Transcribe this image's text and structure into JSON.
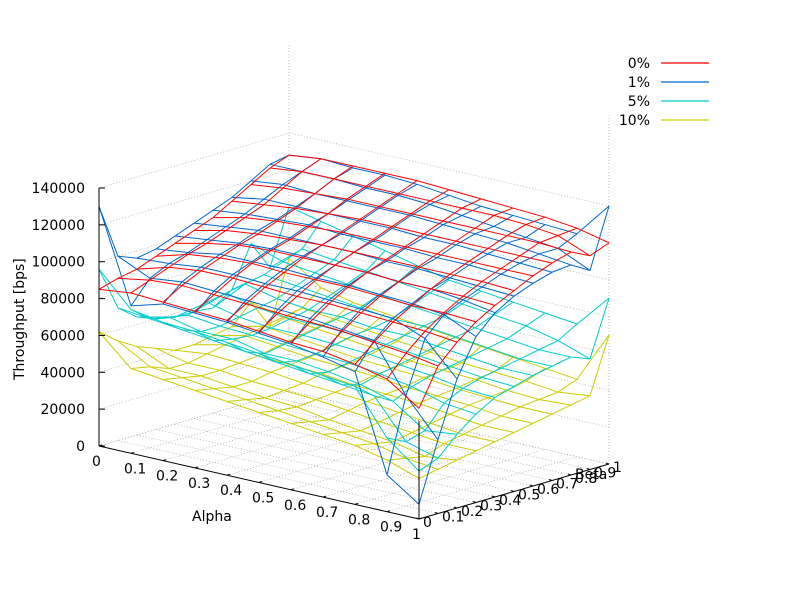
{
  "chart_data": {
    "type": "surface",
    "title": "",
    "xlabel": "Alpha",
    "ylabel": "Beta",
    "zlabel": "Throughput [bps]",
    "x_ticks": [
      "0",
      "0.1",
      "0.2",
      "0.3",
      "0.4",
      "0.5",
      "0.6",
      "0.7",
      "0.8",
      "0.9",
      "1"
    ],
    "y_ticks": [
      "0",
      "0.1",
      "0.2",
      "0.3",
      "0.4",
      "0.5",
      "0.6",
      "0.7",
      "0.8",
      "0.9",
      "1"
    ],
    "z_ticks": [
      "0",
      "20000",
      "40000",
      "60000",
      "80000",
      "100000",
      "120000",
      "140000"
    ],
    "x": [
      0,
      0.1,
      0.2,
      0.3,
      0.4,
      0.5,
      0.6,
      0.7,
      0.8,
      0.9,
      1
    ],
    "y": [
      0,
      0.1,
      0.2,
      0.3,
      0.4,
      0.5,
      0.6,
      0.7,
      0.8,
      0.9,
      1
    ],
    "zlim": [
      0,
      140000
    ],
    "grid": true,
    "legend_position": "top-right",
    "series": [
      {
        "name": "0%",
        "color": "#ff0000",
        "z": [
          [
            85000,
            88000,
            90000,
            94000,
            98000,
            102000,
            106000,
            112000,
            118000,
            124000,
            128000
          ],
          [
            87000,
            91000,
            95000,
            99000,
            102000,
            106000,
            110000,
            114000,
            120000,
            126000,
            130000
          ],
          [
            86000,
            92000,
            97000,
            101000,
            105000,
            108000,
            112000,
            116000,
            121000,
            126000,
            130000
          ],
          [
            85000,
            91000,
            97000,
            102000,
            106000,
            109000,
            113000,
            117000,
            122000,
            126000,
            130000
          ],
          [
            84000,
            90000,
            96000,
            101000,
            106000,
            110000,
            114000,
            118000,
            122000,
            126000,
            130000
          ],
          [
            82000,
            89000,
            95000,
            101000,
            106000,
            110000,
            114000,
            118000,
            122000,
            126000,
            129000
          ],
          [
            80000,
            88000,
            95000,
            101000,
            106000,
            110000,
            114000,
            118000,
            122000,
            126000,
            128000
          ],
          [
            79000,
            87000,
            94000,
            100000,
            105000,
            110000,
            114000,
            118000,
            122000,
            126000,
            127000
          ],
          [
            76000,
            85000,
            93000,
            99000,
            105000,
            110000,
            114000,
            118000,
            122000,
            125000,
            126000
          ],
          [
            72000,
            83000,
            92000,
            99000,
            105000,
            110000,
            114000,
            118000,
            122000,
            123000,
            124000
          ],
          [
            60000,
            80000,
            90000,
            98000,
            104000,
            109000,
            114000,
            118000,
            121000,
            116000,
            120000
          ]
        ]
      },
      {
        "name": "1%",
        "color": "#0066cc",
        "z": [
          [
            130000,
            100000,
            96000,
            98000,
            102000,
            106000,
            110000,
            114000,
            120000,
            126000,
            128000
          ],
          [
            80000,
            92000,
            97000,
            100000,
            104000,
            108000,
            112000,
            117000,
            122000,
            126000,
            130000
          ],
          [
            85000,
            94000,
            99000,
            103000,
            106000,
            110000,
            113000,
            117000,
            121000,
            126000,
            129000
          ],
          [
            84000,
            93000,
            99000,
            103000,
            107000,
            110000,
            114000,
            117000,
            121000,
            125000,
            129000
          ],
          [
            83000,
            92000,
            98000,
            103000,
            107000,
            110000,
            113000,
            117000,
            121000,
            125000,
            128000
          ],
          [
            81000,
            91000,
            98000,
            102000,
            106000,
            110000,
            113000,
            117000,
            121000,
            124000,
            126000
          ],
          [
            79000,
            90000,
            97000,
            102000,
            106000,
            109000,
            113000,
            116000,
            120000,
            122000,
            124000
          ],
          [
            76000,
            88000,
            96000,
            101000,
            105000,
            109000,
            112000,
            116000,
            119000,
            120000,
            123000
          ],
          [
            72000,
            86000,
            95000,
            100000,
            105000,
            108000,
            112000,
            115000,
            118000,
            118000,
            122000
          ],
          [
            20000,
            60000,
            88000,
            98000,
            103000,
            107000,
            111000,
            114000,
            116000,
            116000,
            121000
          ],
          [
            8000,
            40000,
            70000,
            90000,
            100000,
            106000,
            110000,
            113000,
            114000,
            108000,
            140000
          ]
        ]
      },
      {
        "name": "5%",
        "color": "#00cccc",
        "z": [
          [
            96000,
            72000,
            64000,
            60000,
            58000,
            58000,
            57000,
            64000,
            86000,
            70000,
            100000
          ],
          [
            78000,
            70000,
            68000,
            66000,
            70000,
            72000,
            74000,
            76000,
            80000,
            84000,
            96000
          ],
          [
            75000,
            68000,
            64000,
            64000,
            66000,
            68000,
            70000,
            74000,
            78000,
            82000,
            92000
          ],
          [
            74000,
            66000,
            64000,
            63000,
            64000,
            66000,
            68000,
            72000,
            76000,
            80000,
            88000
          ],
          [
            72000,
            64000,
            60000,
            62000,
            64000,
            66000,
            68000,
            70000,
            74000,
            78000,
            84000
          ],
          [
            70000,
            62000,
            60000,
            61000,
            63000,
            65000,
            66000,
            68000,
            72000,
            76000,
            80000
          ],
          [
            68000,
            60000,
            58000,
            60000,
            62000,
            64000,
            66000,
            68000,
            70000,
            74000,
            78000
          ],
          [
            66000,
            58000,
            55000,
            58000,
            60000,
            62000,
            64000,
            66000,
            68000,
            72000,
            76000
          ],
          [
            64000,
            56000,
            50000,
            55000,
            58000,
            60000,
            62000,
            64000,
            66000,
            70000,
            74000
          ],
          [
            40000,
            35000,
            38000,
            50000,
            55000,
            58000,
            60000,
            62000,
            64000,
            66000,
            72000
          ],
          [
            26000,
            30000,
            40000,
            48000,
            54000,
            57000,
            60000,
            62000,
            64000,
            60000,
            90000
          ]
        ]
      },
      {
        "name": "10%",
        "color": "#cccc00",
        "z": [
          [
            62000,
            54000,
            48000,
            44000,
            40000,
            40000,
            42000,
            44000,
            54000,
            38000,
            72000
          ],
          [
            46000,
            44000,
            40000,
            40000,
            42000,
            44000,
            46000,
            48000,
            50000,
            52000,
            60000
          ],
          [
            44000,
            42000,
            40000,
            40000,
            41000,
            42000,
            44000,
            46000,
            48000,
            50000,
            56000
          ],
          [
            42000,
            40000,
            38000,
            38000,
            40000,
            41000,
            42000,
            44000,
            46000,
            48000,
            54000
          ],
          [
            40000,
            38000,
            36000,
            37000,
            38000,
            40000,
            41000,
            42000,
            44000,
            46000,
            52000
          ],
          [
            38000,
            36000,
            35000,
            36000,
            37000,
            38000,
            40000,
            41000,
            42000,
            44000,
            50000
          ],
          [
            36000,
            34000,
            32000,
            34000,
            36000,
            37000,
            38000,
            40000,
            41000,
            42000,
            48000
          ],
          [
            34000,
            32000,
            30000,
            32000,
            34000,
            36000,
            37000,
            38000,
            40000,
            41000,
            46000
          ],
          [
            32000,
            30000,
            28000,
            30000,
            32000,
            34000,
            36000,
            37000,
            38000,
            40000,
            44000
          ],
          [
            28000,
            26000,
            24000,
            28000,
            30000,
            32000,
            34000,
            36000,
            37000,
            38000,
            42000
          ],
          [
            22000,
            24000,
            26000,
            28000,
            30000,
            32000,
            34000,
            36000,
            38000,
            40000,
            70000
          ]
        ]
      }
    ]
  }
}
